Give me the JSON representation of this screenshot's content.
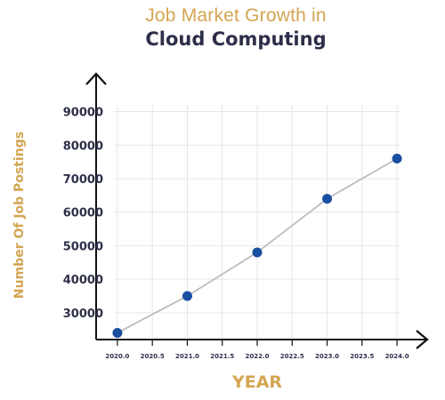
{
  "chart_data": {
    "type": "line",
    "title_line1": "Job Market Growth in",
    "title_line2": "Cloud Computing",
    "xlabel": "YEAR",
    "ylabel": "Number Of Job Postings",
    "x_ticks": [
      "2020.0",
      "2020.5",
      "2021.0",
      "2021.5",
      "2022.0",
      "2022.5",
      "2023.0",
      "2023.5",
      "2024.0"
    ],
    "y_ticks": [
      "30000",
      "40000",
      "50000",
      "60000",
      "70000",
      "80000",
      "90000"
    ],
    "xlim": [
      2019.95,
      2024.05
    ],
    "ylim": [
      22000,
      92000
    ],
    "x": [
      2020,
      2021,
      2022,
      2023,
      2024
    ],
    "y": [
      24000,
      35000,
      48000,
      64000,
      76000
    ],
    "grid": true,
    "colors": {
      "line": "#bdbdbd",
      "marker": "#1a4ea0",
      "title_accent": "#d4a552",
      "title_dark": "#2d2f4a",
      "axis": "#111111",
      "grid": "#e6e6e6"
    }
  }
}
